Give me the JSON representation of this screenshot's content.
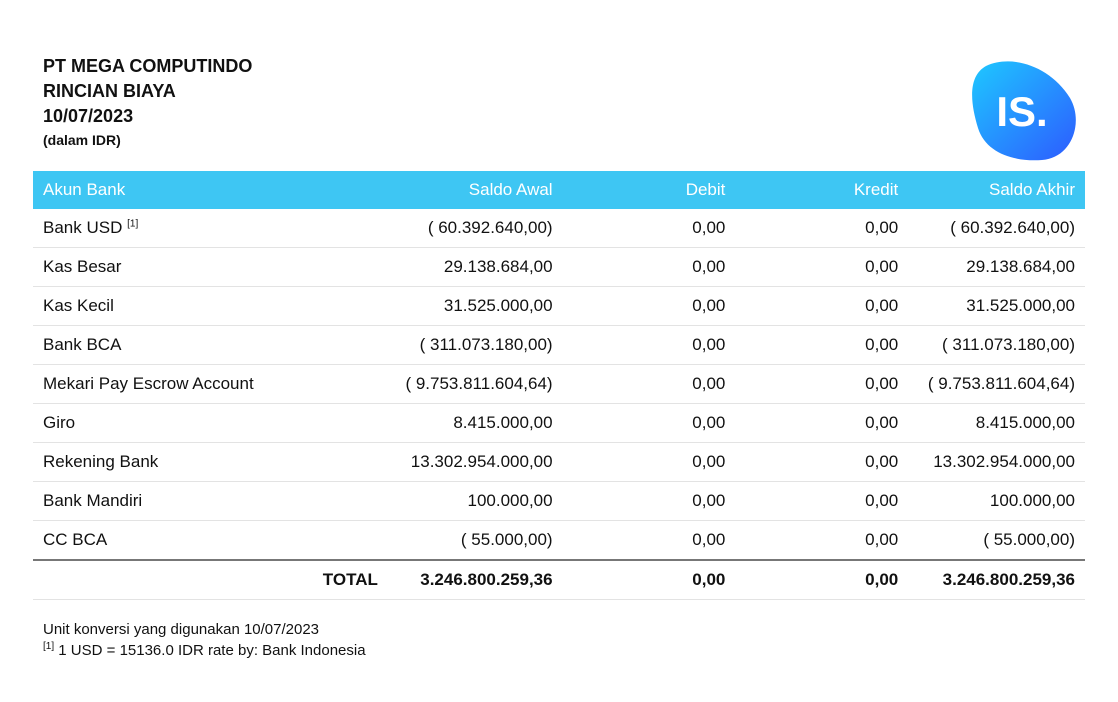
{
  "header": {
    "company": "PT MEGA COMPUTINDO",
    "title": "RINCIAN BIAYA",
    "date": "10/07/2023",
    "currency_note": "(dalam IDR)"
  },
  "logo": {
    "text": "IS.",
    "colors": [
      "#1ec8ff",
      "#2d5bff"
    ]
  },
  "table": {
    "columns": [
      "Akun Bank",
      "Saldo Awal",
      "Debit",
      "Kredit",
      "Saldo Akhir"
    ],
    "rows": [
      {
        "akun": "Bank USD",
        "footnote": "[1]",
        "saldo_awal": "( 60.392.640,00)",
        "debit": "0,00",
        "kredit": "0,00",
        "saldo_akhir": "( 60.392.640,00)"
      },
      {
        "akun": "Kas Besar",
        "footnote": "",
        "saldo_awal": "29.138.684,00",
        "debit": "0,00",
        "kredit": "0,00",
        "saldo_akhir": "29.138.684,00"
      },
      {
        "akun": "Kas Kecil",
        "footnote": "",
        "saldo_awal": "31.525.000,00",
        "debit": "0,00",
        "kredit": "0,00",
        "saldo_akhir": "31.525.000,00"
      },
      {
        "akun": "Bank BCA",
        "footnote": "",
        "saldo_awal": "( 311.073.180,00)",
        "debit": "0,00",
        "kredit": "0,00",
        "saldo_akhir": "( 311.073.180,00)"
      },
      {
        "akun": "Mekari Pay Escrow Account",
        "footnote": "",
        "saldo_awal": "( 9.753.811.604,64)",
        "debit": "0,00",
        "kredit": "0,00",
        "saldo_akhir": "( 9.753.811.604,64)"
      },
      {
        "akun": "Giro",
        "footnote": "",
        "saldo_awal": "8.415.000,00",
        "debit": "0,00",
        "kredit": "0,00",
        "saldo_akhir": "8.415.000,00"
      },
      {
        "akun": "Rekening Bank",
        "footnote": "",
        "saldo_awal": "13.302.954.000,00",
        "debit": "0,00",
        "kredit": "0,00",
        "saldo_akhir": "13.302.954.000,00"
      },
      {
        "akun": "Bank Mandiri",
        "footnote": "",
        "saldo_awal": "100.000,00",
        "debit": "0,00",
        "kredit": "0,00",
        "saldo_akhir": "100.000,00"
      },
      {
        "akun": "CC BCA",
        "footnote": "",
        "saldo_awal": "( 55.000,00)",
        "debit": "0,00",
        "kredit": "0,00",
        "saldo_akhir": "( 55.000,00)"
      }
    ],
    "total": {
      "label": "TOTAL",
      "saldo_awal": "3.246.800.259,36",
      "debit": "0,00",
      "kredit": "0,00",
      "saldo_akhir": "3.246.800.259,36"
    },
    "header_color": "#3ec6f3"
  },
  "footer": {
    "conversion_note": "Unit konversi yang digunakan 10/07/2023",
    "footnote_marker": "[1]",
    "footnote_text": " 1 USD = 15136.0 IDR rate by: Bank Indonesia"
  }
}
